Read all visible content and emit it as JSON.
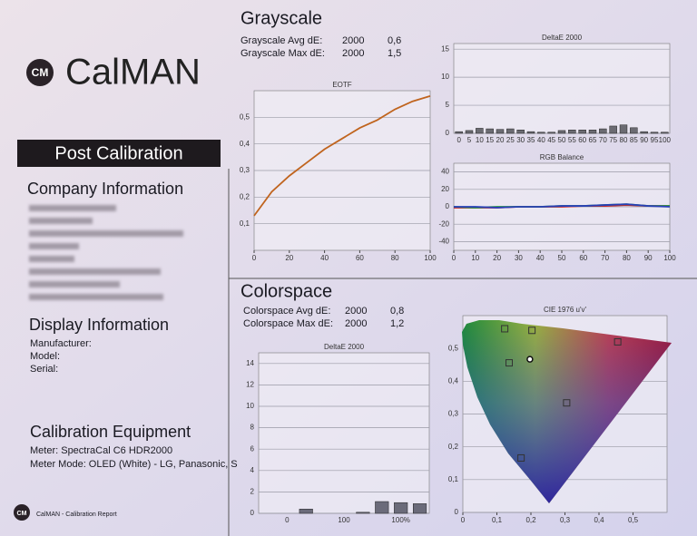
{
  "header": {
    "logo": "CM",
    "brand": "CalMAN"
  },
  "sidebar": {
    "banner": "Post Calibration",
    "company_heading": "Company Information",
    "display_heading": "Display Information",
    "display_fields": [
      "Manufacturer:",
      "Model:",
      "Serial:"
    ],
    "equipment_heading": "Calibration Equipment",
    "equipment_lines": [
      "Meter: SpectraCal C6 HDR2000",
      "Meter Mode: OLED (White) - LG, Panasonic, S"
    ]
  },
  "footer": {
    "logo": "CM",
    "text": "CalMAN - Calibration Report"
  },
  "grayscale": {
    "title": "Grayscale",
    "rows": [
      [
        "Grayscale Avg dE:",
        "2000",
        "0,6"
      ],
      [
        "Grayscale Max dE:",
        "2000",
        "1,5"
      ]
    ]
  },
  "colorspace": {
    "title": "Colorspace",
    "rows": [
      [
        "Colorspace Avg dE:",
        "2000",
        "0,8"
      ],
      [
        "Colorspace Max dE:",
        "2000",
        "1,2"
      ]
    ]
  },
  "chart_data": [
    {
      "type": "bar",
      "title": "DeltaE 2000",
      "color": "#6b6b72",
      "categories": [
        "0",
        "5",
        "10",
        "15",
        "20",
        "25",
        "30",
        "35",
        "40",
        "45",
        "50",
        "55",
        "60",
        "65",
        "70",
        "75",
        "80",
        "85",
        "90",
        "95",
        "100"
      ],
      "values": [
        0.3,
        0.5,
        0.9,
        0.8,
        0.7,
        0.8,
        0.6,
        0.3,
        0.2,
        0.2,
        0.5,
        0.6,
        0.6,
        0.6,
        0.8,
        1.3,
        1.5,
        1.0,
        0.3,
        0.2,
        0.2
      ],
      "ylim": [
        0,
        16
      ],
      "yticks": [
        0,
        5,
        10,
        15
      ],
      "grid": true
    },
    {
      "type": "line",
      "title": "EOTF",
      "x": [
        0,
        10,
        20,
        30,
        40,
        50,
        60,
        70,
        80,
        90,
        100
      ],
      "series": [
        {
          "color": "#c0641e",
          "values": [
            0.13,
            0.22,
            0.28,
            0.33,
            0.38,
            0.42,
            0.46,
            0.49,
            0.53,
            0.56,
            0.58
          ]
        }
      ],
      "xlim": [
        0,
        100
      ],
      "xticks": [
        0,
        20,
        40,
        60,
        80,
        100
      ],
      "ylim": [
        0,
        0.6
      ],
      "yticks": [
        {
          "value": 0.1,
          "label": "0,1"
        },
        {
          "value": 0.2,
          "label": "0,2"
        },
        {
          "value": 0.3,
          "label": "0,3"
        },
        {
          "value": 0.4,
          "label": "0,4"
        },
        {
          "value": 0.5,
          "label": "0,5"
        }
      ],
      "grid": true
    },
    {
      "type": "line",
      "title": "RGB Balance",
      "x": [
        0,
        10,
        20,
        30,
        40,
        50,
        60,
        70,
        80,
        90,
        100
      ],
      "series": [
        {
          "color": "#d02828",
          "values": [
            -1,
            -1,
            -1,
            0,
            0,
            0,
            1,
            1,
            2,
            1,
            1
          ]
        },
        {
          "color": "#2a9a3a",
          "values": [
            0,
            -1,
            0,
            0,
            0,
            1,
            1,
            2,
            3,
            1,
            1
          ]
        },
        {
          "color": "#2840b8",
          "values": [
            0,
            0,
            -1,
            0,
            0,
            1,
            1,
            2,
            3,
            1,
            0
          ]
        }
      ],
      "xlim": [
        0,
        100
      ],
      "xticks": [
        0,
        10,
        20,
        30,
        40,
        50,
        60,
        70,
        80,
        90,
        100
      ],
      "ylim": [
        -50,
        50
      ],
      "yticks": [
        -40,
        -20,
        0,
        20,
        40
      ],
      "grid": true
    },
    {
      "type": "bar",
      "title": "DeltaE 2000",
      "color": "#6b6b7a",
      "categories": [
        null,
        "0",
        null,
        null,
        "100",
        null,
        null,
        "100%",
        null
      ],
      "values": [
        0,
        0,
        0.4,
        0,
        0,
        0.1,
        1.1,
        1.0,
        0.9
      ],
      "ylim": [
        0,
        15
      ],
      "yticks": [
        0,
        2,
        4,
        6,
        8,
        10,
        12,
        14
      ],
      "grid": true
    },
    {
      "type": "scatter",
      "title": "CIE 1976 u'v'",
      "series": [
        {
          "marker": "square",
          "color": "#333333",
          "x": [
            0.123,
            0.203,
            0.455,
            0.136,
            0.305,
            0.171
          ],
          "values": [
            0.56,
            0.555,
            0.52,
            0.456,
            0.334,
            0.166
          ]
        },
        {
          "marker": "circle",
          "color": "#111111",
          "x": [
            0.197
          ],
          "values": [
            0.467
          ]
        }
      ],
      "xlim": [
        0,
        0.6
      ],
      "xticks": [
        0,
        {
          "value": 0.1,
          "label": "0,1"
        },
        {
          "value": 0.2,
          "label": "0,2"
        },
        {
          "value": 0.3,
          "label": "0,3"
        },
        {
          "value": 0.4,
          "label": "0,4"
        },
        {
          "value": 0.5,
          "label": "0,5"
        }
      ],
      "ylim": [
        0,
        0.6
      ],
      "yticks": [
        0,
        {
          "value": 0.1,
          "label": "0,1"
        },
        {
          "value": 0.2,
          "label": "0,2"
        },
        {
          "value": 0.3,
          "label": "0,3"
        },
        {
          "value": 0.4,
          "label": "0,4"
        },
        {
          "value": 0.5,
          "label": "0,5"
        }
      ],
      "grid": true
    }
  ]
}
